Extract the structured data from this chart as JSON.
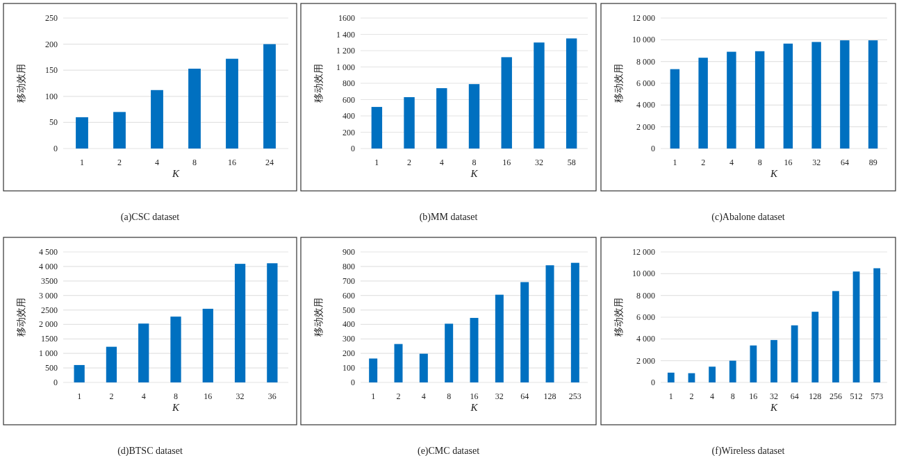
{
  "chart_data": [
    {
      "type": "bar",
      "title": "(a)CSC dataset",
      "xlabel": "K",
      "ylabel": "移动效用",
      "categories": [
        "1",
        "2",
        "4",
        "8",
        "16",
        "24"
      ],
      "values": [
        60,
        70,
        112,
        153,
        172,
        200
      ],
      "color": "#0070c0",
      "ylim": [
        0,
        250
      ],
      "yticks": [
        0,
        50,
        100,
        150,
        200,
        250
      ],
      "grid": "y"
    },
    {
      "type": "bar",
      "title": "(b)MM dataset",
      "xlabel": "K",
      "ylabel": "移动效用",
      "categories": [
        "1",
        "2",
        "4",
        "8",
        "16",
        "32",
        "58"
      ],
      "values": [
        510,
        630,
        740,
        790,
        1120,
        1300,
        1350
      ],
      "color": "#0070c0",
      "ylim": [
        0,
        1600
      ],
      "yticks": [
        0,
        200,
        400,
        600,
        800,
        {
          "value": 1000,
          "label": "1 000"
        },
        {
          "value": 1200,
          "label": "1 200"
        },
        {
          "value": 1400,
          "label": "1 400"
        },
        1600
      ],
      "grid": "y"
    },
    {
      "type": "bar",
      "title": "(c)Abalone dataset",
      "xlabel": "K",
      "ylabel": "移动效用",
      "categories": [
        "1",
        "2",
        "4",
        "8",
        "16",
        "32",
        "64",
        "89"
      ],
      "values": [
        7300,
        8350,
        8900,
        8950,
        9650,
        9800,
        9950,
        9950
      ],
      "color": "#0070c0",
      "ylim": [
        0,
        12000
      ],
      "yticks": [
        0,
        {
          "value": 2000,
          "label": "2 000"
        },
        {
          "value": 4000,
          "label": "4 000"
        },
        {
          "value": 6000,
          "label": "6 000"
        },
        {
          "value": 8000,
          "label": "8 000"
        },
        {
          "value": 10000,
          "label": "10 000"
        },
        {
          "value": 12000,
          "label": "12 000"
        }
      ],
      "grid": "y"
    },
    {
      "type": "bar",
      "title": "(d)BTSC dataset",
      "xlabel": "K",
      "ylabel": "移动效用",
      "categories": [
        "1",
        "2",
        "4",
        "8",
        "16",
        "32",
        "36"
      ],
      "values": [
        600,
        1230,
        2030,
        2270,
        2540,
        4090,
        4110
      ],
      "color": "#0070c0",
      "ylim": [
        0,
        4500
      ],
      "yticks": [
        0,
        500,
        {
          "value": 1000,
          "label": "1 000"
        },
        1500,
        {
          "value": 2000,
          "label": "2 000"
        },
        2500,
        {
          "value": 3000,
          "label": "3 000"
        },
        3500,
        {
          "value": 4000,
          "label": "4 000"
        },
        {
          "value": 4500,
          "label": "4 500"
        }
      ],
      "grid": "y"
    },
    {
      "type": "bar",
      "title": "(e)CMC dataset",
      "xlabel": "K",
      "ylabel": "移动效用",
      "categories": [
        "1",
        "2",
        "4",
        "8",
        "16",
        "32",
        "64",
        "128",
        "253"
      ],
      "values": [
        165,
        265,
        198,
        405,
        445,
        605,
        692,
        808,
        825
      ],
      "color": "#0070c0",
      "ylim": [
        0,
        900
      ],
      "yticks": [
        0,
        100,
        200,
        300,
        400,
        500,
        600,
        700,
        800,
        900
      ],
      "grid": "y"
    },
    {
      "type": "bar",
      "title": "(f)Wireless dataset",
      "xlabel": "K",
      "ylabel": "移动效用",
      "categories": [
        "1",
        "2",
        "4",
        "8",
        "16",
        "32",
        "64",
        "128",
        "256",
        "512",
        "573"
      ],
      "values": [
        900,
        850,
        1450,
        2000,
        3400,
        3900,
        5250,
        6500,
        8400,
        10200,
        10500
      ],
      "color": "#0070c0",
      "ylim": [
        0,
        12000
      ],
      "yticks": [
        0,
        {
          "value": 2000,
          "label": "2 000"
        },
        {
          "value": 4000,
          "label": "4 000"
        },
        {
          "value": 6000,
          "label": "6 000"
        },
        {
          "value": 8000,
          "label": "8 000"
        },
        {
          "value": 10000,
          "label": "10 000"
        },
        {
          "value": 12000,
          "label": "12 000"
        }
      ],
      "grid": "y"
    }
  ]
}
